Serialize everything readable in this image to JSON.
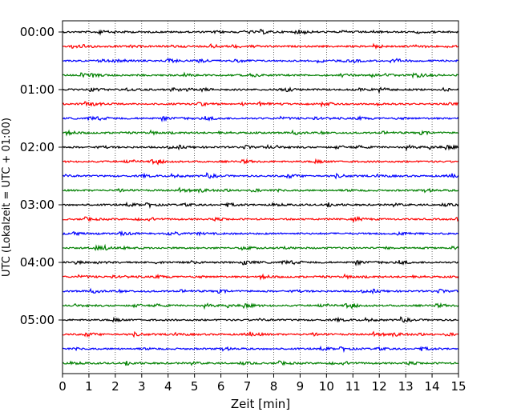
{
  "chart_data": {
    "type": "line",
    "title": "",
    "xlabel": "Zeit  [min]",
    "ylabel": "UTC (Lokalzeit = UTC + 01:00)",
    "xlim": [
      0,
      15
    ],
    "x_ticks": [
      "0",
      "1",
      "2",
      "3",
      "4",
      "5",
      "6",
      "7",
      "8",
      "9",
      "10",
      "11",
      "12",
      "13",
      "14",
      "15"
    ],
    "y_tick_labels": [
      "00:00",
      "01:00",
      "02:00",
      "03:00",
      "04:00",
      "05:00"
    ],
    "trace_interval_minutes": 15,
    "trace_count": 24,
    "trace_colors": [
      "#000000",
      "#ff0000",
      "#0000ff",
      "#008000"
    ],
    "grid": "vertical dotted at each minute",
    "series": [
      {
        "start_utc": "00:00",
        "color": "#000000"
      },
      {
        "start_utc": "00:15",
        "color": "#ff0000"
      },
      {
        "start_utc": "00:30",
        "color": "#0000ff"
      },
      {
        "start_utc": "00:45",
        "color": "#008000"
      },
      {
        "start_utc": "01:00",
        "color": "#000000"
      },
      {
        "start_utc": "01:15",
        "color": "#ff0000"
      },
      {
        "start_utc": "01:30",
        "color": "#0000ff"
      },
      {
        "start_utc": "01:45",
        "color": "#008000"
      },
      {
        "start_utc": "02:00",
        "color": "#000000"
      },
      {
        "start_utc": "02:15",
        "color": "#ff0000"
      },
      {
        "start_utc": "02:30",
        "color": "#0000ff"
      },
      {
        "start_utc": "02:45",
        "color": "#008000"
      },
      {
        "start_utc": "03:00",
        "color": "#000000"
      },
      {
        "start_utc": "03:15",
        "color": "#ff0000"
      },
      {
        "start_utc": "03:30",
        "color": "#0000ff"
      },
      {
        "start_utc": "03:45",
        "color": "#008000"
      },
      {
        "start_utc": "04:00",
        "color": "#000000"
      },
      {
        "start_utc": "04:15",
        "color": "#ff0000"
      },
      {
        "start_utc": "04:30",
        "color": "#0000ff"
      },
      {
        "start_utc": "04:45",
        "color": "#008000"
      },
      {
        "start_utc": "05:00",
        "color": "#000000"
      },
      {
        "start_utc": "05:15",
        "color": "#ff0000"
      },
      {
        "start_utc": "05:30",
        "color": "#0000ff"
      },
      {
        "start_utc": "05:45",
        "color": "#008000"
      }
    ]
  }
}
